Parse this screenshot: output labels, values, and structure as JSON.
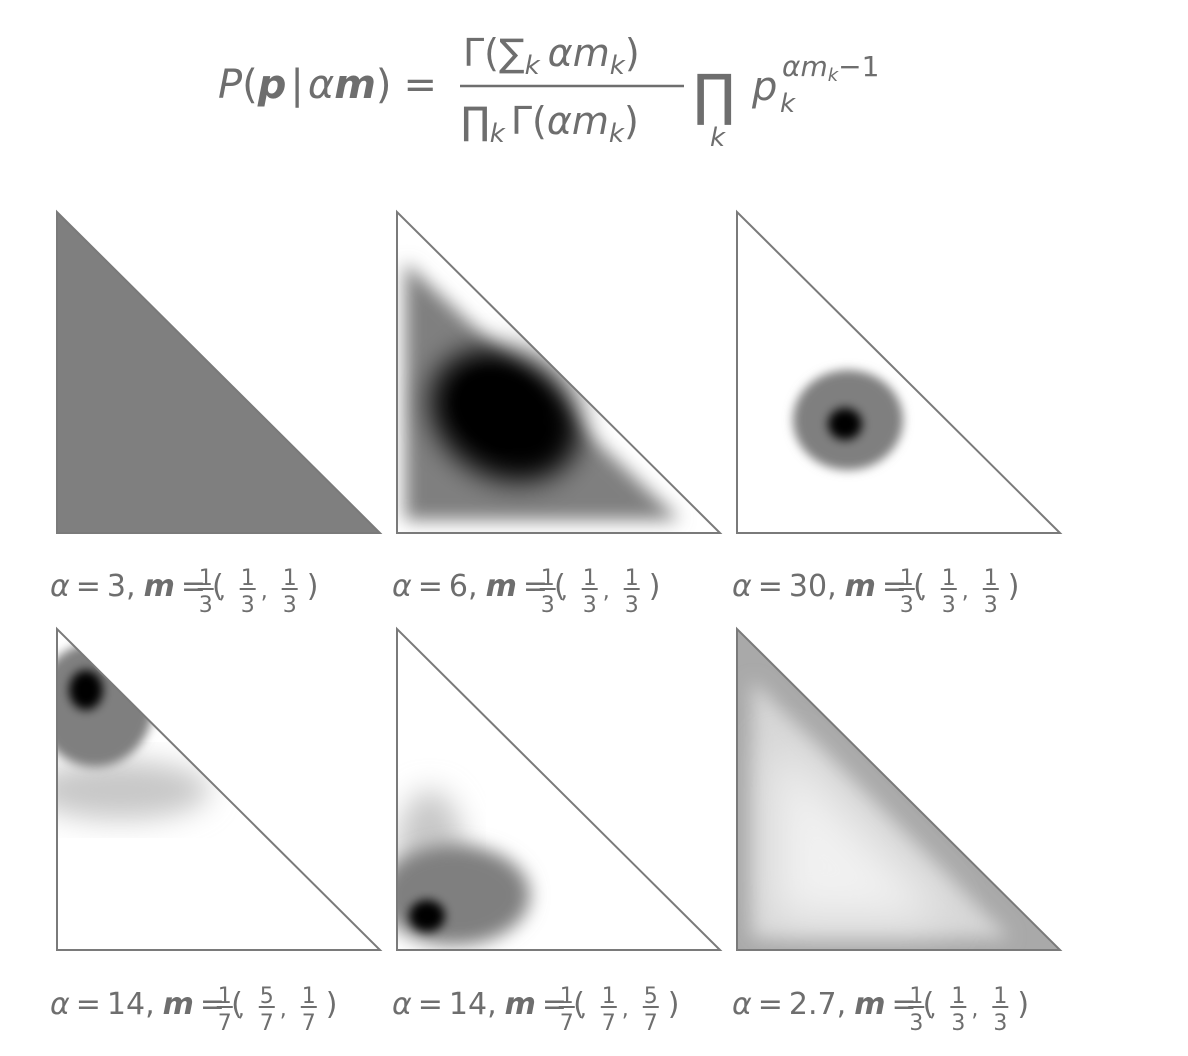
{
  "formula": {
    "lhs_P": "P",
    "lhs_p": "p",
    "lhs_bar": "|",
    "lhs_alpha": "α",
    "lhs_m": "m",
    "equals": "=",
    "numerator_gamma": "Γ(",
    "numerator_sum": "∑",
    "numerator_sum_sub": "k",
    "numerator_alpha": "α",
    "numerator_m": "m",
    "numerator_m_sub": "k",
    "numerator_close": ")",
    "denominator_prod": "∏",
    "denominator_prod_sub": "k",
    "denominator_gamma": "Γ(",
    "denominator_alpha": "α",
    "denominator_m": "m",
    "denominator_m_sub": "k",
    "denominator_close": ")",
    "prod": "∏",
    "prod_sub": "k",
    "p": "p",
    "p_sub": "k",
    "exponent": "αm",
    "exponent_sub": "k",
    "exponent_tail": "−1"
  },
  "panels": [
    {
      "alpha": "3",
      "m": [
        [
          "1",
          "3"
        ],
        [
          "1",
          "3"
        ],
        [
          "1",
          "3"
        ]
      ],
      "shading": "uniform"
    },
    {
      "alpha": "6",
      "m": [
        [
          "1",
          "3"
        ],
        [
          "1",
          "3"
        ],
        [
          "1",
          "3"
        ]
      ],
      "shading": "broad-centered"
    },
    {
      "alpha": "30",
      "m": [
        [
          "1",
          "3"
        ],
        [
          "1",
          "3"
        ],
        [
          "1",
          "3"
        ]
      ],
      "shading": "tight-centered"
    },
    {
      "alpha": "14",
      "m": [
        [
          "1",
          "7"
        ],
        [
          "5",
          "7"
        ],
        [
          "1",
          "7"
        ]
      ],
      "shading": "top-corner"
    },
    {
      "alpha": "14",
      "m": [
        [
          "1",
          "7"
        ],
        [
          "1",
          "7"
        ],
        [
          "5",
          "7"
        ]
      ],
      "shading": "bottom-left-corner"
    },
    {
      "alpha": "2.7",
      "m": [
        [
          "1",
          "3"
        ],
        [
          "1",
          "3"
        ],
        [
          "1",
          "3"
        ]
      ],
      "shading": "edges-dark-center-light"
    }
  ],
  "caption_parts": {
    "alpha_symbol": "α",
    "equals": "=",
    "comma": ",",
    "m_symbol": "m",
    "open_paren": "(",
    "close_paren": ")"
  },
  "colors": {
    "text": "#6e6e6e",
    "triangle_edge": "#7a7a7a",
    "mid_gray": "#7f7f7f",
    "dark": "#000000"
  }
}
